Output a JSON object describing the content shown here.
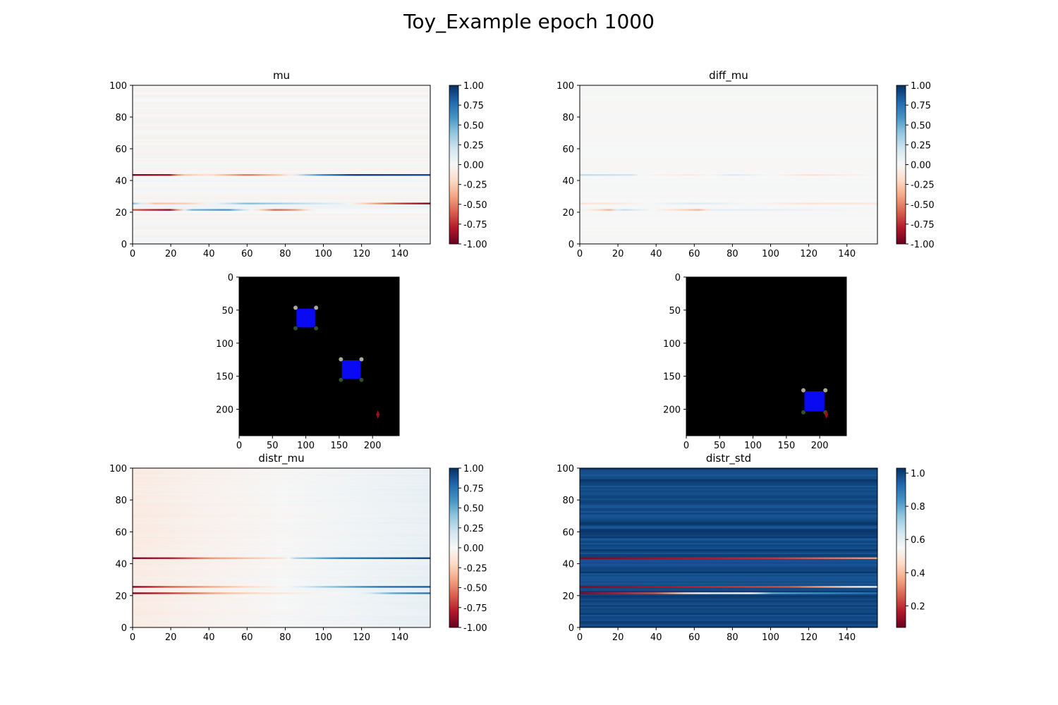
{
  "figure": {
    "title": "Toy_Example epoch 1000"
  },
  "chart_data": [
    {
      "id": "mu",
      "type": "heatmap",
      "title": "mu",
      "cmap": "RdBu",
      "xlim": [
        0,
        156
      ],
      "ylim": [
        0,
        100
      ],
      "xticks": [
        "0",
        "20",
        "40",
        "60",
        "80",
        "100",
        "120",
        "140"
      ],
      "yticks": [
        "0",
        "20",
        "40",
        "60",
        "80",
        "100"
      ],
      "colorbar": {
        "range": [
          -1,
          1
        ],
        "ticks": [
          "-1.00",
          "-0.75",
          "-0.50",
          "-0.25",
          "0.00",
          "0.25",
          "0.50",
          "0.75",
          "1.00"
        ]
      },
      "background": "near-zero noise (|v| < 0.05)",
      "rows": [
        {
          "y": 43,
          "points": [
            [
              0,
              -0.95
            ],
            [
              20,
              -0.85
            ],
            [
              25,
              -0.3
            ],
            [
              40,
              -0.15
            ],
            [
              60,
              -0.55
            ],
            [
              80,
              -0.2
            ],
            [
              90,
              0.35
            ],
            [
              100,
              0.65
            ],
            [
              115,
              0.95
            ],
            [
              156,
              0.9
            ]
          ]
        },
        {
          "y": 25,
          "points": [
            [
              0,
              0.45
            ],
            [
              10,
              -0.3
            ],
            [
              30,
              -0.25
            ],
            [
              60,
              0.45
            ],
            [
              110,
              0.1
            ],
            [
              120,
              -0.2
            ],
            [
              135,
              -0.6
            ],
            [
              156,
              -0.95
            ]
          ]
        },
        {
          "y": 21,
          "points": [
            [
              0,
              -0.6
            ],
            [
              20,
              -0.9
            ],
            [
              30,
              0.45
            ],
            [
              50,
              0.6
            ],
            [
              65,
              -0.1
            ],
            [
              75,
              -0.6
            ],
            [
              85,
              -0.45
            ],
            [
              95,
              0.0
            ],
            [
              156,
              0.0
            ]
          ]
        }
      ]
    },
    {
      "id": "diff_mu",
      "type": "heatmap",
      "title": "diff_mu",
      "cmap": "RdBu",
      "xlim": [
        0,
        156
      ],
      "ylim": [
        0,
        100
      ],
      "xticks": [
        "0",
        "20",
        "40",
        "60",
        "80",
        "100",
        "120",
        "140"
      ],
      "yticks": [
        "0",
        "20",
        "40",
        "60",
        "80",
        "100"
      ],
      "colorbar": {
        "range": [
          -1,
          1
        ],
        "ticks": [
          "-1.00",
          "-0.75",
          "-0.50",
          "-0.25",
          "0.00",
          "0.25",
          "0.50",
          "0.75",
          "1.00"
        ]
      },
      "background": "near-zero",
      "rows": [
        {
          "y": 43,
          "points": [
            [
              0,
              0.25
            ],
            [
              28,
              0.2
            ],
            [
              29,
              0.0
            ],
            [
              60,
              -0.1
            ],
            [
              80,
              0.15
            ],
            [
              120,
              -0.15
            ],
            [
              156,
              0.0
            ]
          ]
        },
        {
          "y": 25,
          "points": [
            [
              0,
              -0.15
            ],
            [
              20,
              -0.1
            ],
            [
              60,
              0.15
            ],
            [
              120,
              -0.15
            ],
            [
              156,
              -0.1
            ]
          ]
        },
        {
          "y": 21,
          "points": [
            [
              0,
              0.05
            ],
            [
              18,
              -0.4
            ],
            [
              20,
              0.3
            ],
            [
              35,
              0.05
            ],
            [
              63,
              -0.35
            ],
            [
              70,
              0.1
            ],
            [
              90,
              0.1
            ],
            [
              156,
              0.0
            ]
          ]
        }
      ]
    },
    {
      "id": "image_left",
      "type": "image",
      "title": "",
      "xlim": [
        0,
        240
      ],
      "ylim": [
        240,
        0
      ],
      "xticks": [
        "0",
        "50",
        "100",
        "150",
        "200"
      ],
      "yticks": [
        "0",
        "50",
        "100",
        "150",
        "200"
      ],
      "objects": [
        {
          "kind": "agent",
          "x": 100,
          "y": 62,
          "size": 28,
          "color": "#0a0aff"
        },
        {
          "kind": "agent",
          "x": 168,
          "y": 140,
          "size": 28,
          "color": "#0a0aff"
        },
        {
          "kind": "marker",
          "x": 208,
          "y": 208,
          "color": "#a01010"
        }
      ]
    },
    {
      "id": "image_right",
      "type": "image",
      "title": "",
      "xlim": [
        0,
        240
      ],
      "ylim": [
        240,
        0
      ],
      "xticks": [
        "0",
        "50",
        "100",
        "150",
        "200"
      ],
      "yticks": [
        "0",
        "50",
        "100",
        "150",
        "200"
      ],
      "objects": [
        {
          "kind": "agent",
          "x": 192,
          "y": 188,
          "size": 30,
          "color": "#0a0aff"
        },
        {
          "kind": "marker",
          "x": 210,
          "y": 208,
          "color": "#a01010"
        }
      ]
    },
    {
      "id": "distr_mu",
      "type": "heatmap",
      "title": "distr_mu",
      "cmap": "RdBu",
      "xlim": [
        0,
        156
      ],
      "ylim": [
        0,
        100
      ],
      "xticks": [
        "0",
        "20",
        "40",
        "60",
        "80",
        "100",
        "120",
        "140"
      ],
      "yticks": [
        "0",
        "20",
        "40",
        "60",
        "80",
        "100"
      ],
      "colorbar": {
        "range": [
          -1,
          1
        ],
        "ticks": [
          "-1.00",
          "-0.75",
          "-0.50",
          "-0.25",
          "0.00",
          "0.25",
          "0.50",
          "0.75",
          "1.00"
        ]
      },
      "background": "left ~ -0.08 to right ~ +0.08",
      "rows": [
        {
          "y": 43,
          "points": [
            [
              0,
              -0.95
            ],
            [
              20,
              -0.8
            ],
            [
              40,
              -0.45
            ],
            [
              80,
              -0.15
            ],
            [
              85,
              0.3
            ],
            [
              110,
              0.7
            ],
            [
              156,
              0.95
            ]
          ]
        },
        {
          "y": 25,
          "points": [
            [
              0,
              -0.95
            ],
            [
              20,
              -0.6
            ],
            [
              60,
              -0.2
            ],
            [
              80,
              0.0
            ],
            [
              100,
              0.35
            ],
            [
              130,
              0.75
            ],
            [
              156,
              0.85
            ]
          ]
        },
        {
          "y": 21,
          "points": [
            [
              0,
              -0.95
            ],
            [
              20,
              -0.7
            ],
            [
              50,
              -0.3
            ],
            [
              80,
              -0.1
            ],
            [
              120,
              0.05
            ],
            [
              135,
              0.5
            ],
            [
              156,
              0.75
            ]
          ]
        }
      ]
    },
    {
      "id": "distr_std",
      "type": "heatmap",
      "title": "distr_std",
      "cmap": "RdBu",
      "xlim": [
        0,
        156
      ],
      "ylim": [
        0,
        100
      ],
      "xticks": [
        "0",
        "20",
        "40",
        "60",
        "80",
        "100",
        "120",
        "140"
      ],
      "yticks": [
        "0",
        "20",
        "40",
        "60",
        "80",
        "100"
      ],
      "colorbar": {
        "range": [
          0.07,
          1.03
        ],
        "ticks": [
          "0.2",
          "0.4",
          "0.6",
          "0.8",
          "1.0"
        ]
      },
      "background": "~0.97 to 1.0",
      "rows": [
        {
          "y": 43,
          "points": [
            [
              0,
              0.1
            ],
            [
              50,
              0.15
            ],
            [
              100,
              0.2
            ],
            [
              156,
              0.35
            ]
          ]
        },
        {
          "y": 25,
          "points": [
            [
              0,
              0.1
            ],
            [
              60,
              0.18
            ],
            [
              110,
              0.25
            ],
            [
              140,
              0.45
            ],
            [
              156,
              0.6
            ]
          ]
        },
        {
          "y": 21,
          "points": [
            [
              0,
              0.1
            ],
            [
              40,
              0.25
            ],
            [
              55,
              0.45
            ],
            [
              70,
              0.6
            ],
            [
              90,
              0.55
            ],
            [
              100,
              0.8
            ],
            [
              156,
              0.92
            ]
          ]
        }
      ]
    }
  ]
}
